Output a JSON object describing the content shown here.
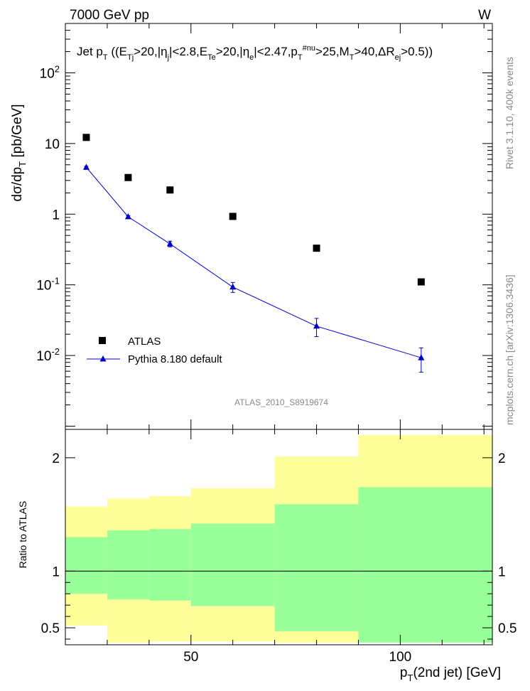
{
  "header": {
    "left": "7000 GeV pp",
    "right": "W"
  },
  "side_labels": {
    "rivet": "Rivet 3.1.10,  400k events",
    "mcplots": "mcplots.cern.ch [arXiv:1306.3436]"
  },
  "chart_data": [
    {
      "type": "scatter",
      "panel": "main",
      "title": "Jet p_T ((E_Tj>20,|η_j|<2.8,E_Te>20,|η_e|<2.47,p_T^#nu>25,M_T>40,ΔR_ej>0.5))",
      "ylabel": "dσ/dp_T [pb/GeV]",
      "yscale": "log",
      "ylim": [
        0.0009,
        500
      ],
      "xlim": [
        20,
        122
      ],
      "yticks": [
        "10^-2",
        "10^-1",
        "1",
        "10",
        "10^2"
      ],
      "watermark": "ATLAS_2010_S8919674",
      "legend_position": "lower-left",
      "series": [
        {
          "name": "ATLAS",
          "marker": "square",
          "color": "#000000",
          "x": [
            25,
            35,
            45,
            60,
            80,
            105
          ],
          "y": [
            12.2,
            3.3,
            2.2,
            0.93,
            0.33,
            0.11
          ]
        },
        {
          "name": "Pythia 8.180 default",
          "marker": "triangle",
          "line": true,
          "color": "#0000cc",
          "x": [
            25,
            35,
            45,
            60,
            80,
            105
          ],
          "y": [
            4.6,
            0.92,
            0.38,
            0.093,
            0.026,
            0.0093
          ],
          "err_low": [
            0.15,
            0.03,
            0.035,
            0.015,
            0.0075,
            0.0035
          ],
          "err_high": [
            0.15,
            0.03,
            0.035,
            0.015,
            0.0075,
            0.0035
          ]
        }
      ]
    },
    {
      "type": "area",
      "panel": "ratio",
      "ylabel": "Ratio to ATLAS",
      "xlabel": "p_T(2nd jet) [GeV]",
      "ylim": [
        0.35,
        2.25
      ],
      "xlim": [
        20,
        122
      ],
      "xticks": [
        50,
        100
      ],
      "yticks": [
        0.5,
        1,
        2
      ],
      "colors": {
        "outer_band": "#ffff99",
        "inner_band": "#99ff99",
        "reference": "#000000"
      },
      "bins": [
        {
          "lo": 20,
          "hi": 30,
          "outer": [
            0.52,
            1.57
          ],
          "inner": [
            0.8,
            1.3
          ]
        },
        {
          "lo": 30,
          "hi": 40,
          "outer": [
            0.37,
            1.64
          ],
          "inner": [
            0.75,
            1.36
          ]
        },
        {
          "lo": 40,
          "hi": 50,
          "outer": [
            0.38,
            1.66
          ],
          "inner": [
            0.74,
            1.37
          ]
        },
        {
          "lo": 50,
          "hi": 70,
          "outer": [
            0.38,
            1.73
          ],
          "inner": [
            0.69,
            1.42
          ]
        },
        {
          "lo": 70,
          "hi": 90,
          "outer": [
            0.37,
            2.01
          ],
          "inner": [
            0.47,
            1.59
          ]
        },
        {
          "lo": 90,
          "hi": 122,
          "outer": [
            0.37,
            2.2
          ],
          "inner": [
            0.37,
            1.74
          ]
        }
      ]
    }
  ]
}
